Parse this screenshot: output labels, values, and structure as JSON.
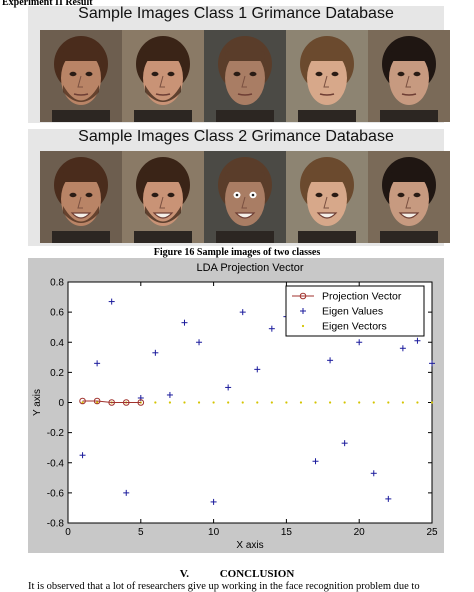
{
  "heading": "Experiment II Result",
  "panels": [
    {
      "title": "Sample Images Class 1 Grimance Database",
      "faces": [
        {
          "skin": "#b98466",
          "hair": "#4a2c1c",
          "bg": "#6d5e4f",
          "expr": "neutral",
          "beard": true
        },
        {
          "skin": "#c99376",
          "hair": "#3a2417",
          "bg": "#8a7a66",
          "expr": "neutral",
          "beard": true
        },
        {
          "skin": "#a97d64",
          "hair": "#5a3d2a",
          "bg": "#4b4a45",
          "expr": "neutral",
          "beard": false
        },
        {
          "skin": "#d7a88a",
          "hair": "#6b4a2e",
          "bg": "#8d8472",
          "expr": "neutral",
          "beard": false
        },
        {
          "skin": "#c79a80",
          "hair": "#1f1612",
          "bg": "#7a6a58",
          "expr": "neutral",
          "beard": false
        }
      ]
    },
    {
      "title": "Sample Images Class 2 Grimance Database",
      "faces": [
        {
          "skin": "#b98466",
          "hair": "#4a2c1c",
          "bg": "#6d5e4f",
          "expr": "smile",
          "beard": true
        },
        {
          "skin": "#c99376",
          "hair": "#3a2417",
          "bg": "#8a7a66",
          "expr": "smile",
          "beard": true
        },
        {
          "skin": "#a97d64",
          "hair": "#5a3d2a",
          "bg": "#4b4a45",
          "expr": "grin",
          "beard": false
        },
        {
          "skin": "#d7a88a",
          "hair": "#6b4a2e",
          "bg": "#8d8472",
          "expr": "smile",
          "beard": false
        },
        {
          "skin": "#c79a80",
          "hair": "#1f1612",
          "bg": "#7a6a58",
          "expr": "smile",
          "beard": false
        }
      ]
    }
  ],
  "caption": "Figure 16 Sample images of two classes",
  "chart_data": {
    "type": "scatter",
    "title": "LDA Projection Vector",
    "xlabel": "X axis",
    "ylabel": "Y axis",
    "xlim": [
      0,
      25
    ],
    "ylim": [
      -0.8,
      0.8
    ],
    "xticks": [
      0,
      5,
      10,
      15,
      20,
      25
    ],
    "yticks": [
      -0.8,
      -0.6,
      -0.4,
      -0.2,
      0,
      0.2,
      0.4,
      0.6,
      0.8
    ],
    "grid": false,
    "legend_position": "top-right",
    "series": [
      {
        "name": "Projection Vector",
        "marker": "circle-line",
        "color": "#a0322d",
        "x": [
          1,
          2,
          3,
          4,
          5
        ],
        "y": [
          0.01,
          0.01,
          0.0,
          0.0,
          0.0
        ]
      },
      {
        "name": "Eigen Values",
        "marker": "plus",
        "color": "#1a1a9c",
        "x": [
          1,
          2,
          3,
          4,
          5,
          6,
          7,
          8,
          9,
          10,
          11,
          12,
          13,
          14,
          15,
          16,
          17,
          18,
          19,
          20,
          21,
          22,
          23,
          24,
          25
        ],
        "y": [
          -0.35,
          0.26,
          0.67,
          -0.6,
          0.03,
          0.33,
          0.05,
          0.53,
          0.4,
          -0.66,
          0.1,
          0.6,
          0.22,
          0.49,
          0.57,
          0.68,
          -0.39,
          0.28,
          -0.27,
          0.4,
          -0.47,
          -0.64,
          0.36,
          0.41,
          0.26
        ]
      },
      {
        "name": "Eigen Vectors",
        "marker": "dot",
        "color": "#d4c400",
        "x": [
          1,
          2,
          3,
          4,
          5,
          6,
          7,
          8,
          9,
          10,
          11,
          12,
          13,
          14,
          15,
          16,
          17,
          18,
          19,
          20,
          21,
          22,
          23,
          24,
          25
        ],
        "y": [
          0,
          0,
          0,
          0,
          0,
          0,
          0,
          0,
          0,
          0,
          0,
          0,
          0,
          0,
          0,
          0,
          0,
          0,
          0,
          0,
          0,
          0,
          0,
          0,
          0
        ]
      }
    ]
  },
  "section": {
    "number": "V.",
    "title": "CONCLUSION"
  },
  "body_text": "It is observed that a lot of researchers give up working in the face recognition problem due to"
}
